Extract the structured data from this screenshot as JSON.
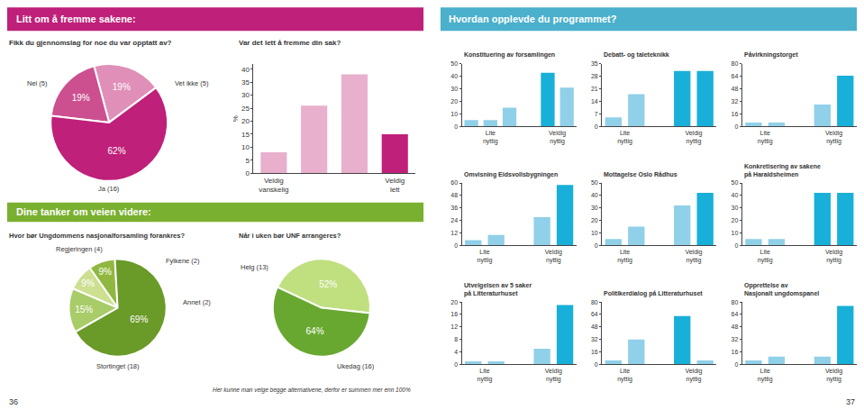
{
  "annotations": [
    {
      "text": "Litt om å fremme sakene:",
      "color": "#bf2079"
    },
    {
      "text": "Hvordan opplevde du programmet?",
      "color": "#4ab0cc"
    },
    {
      "text": "Dine tanker om veien videre:",
      "color": "#7ab030"
    },
    {
      "text": "36"
    },
    {
      "text": "37"
    }
  ],
  "chart_data": [
    {
      "type": "pie",
      "title": "Fikk du gjennomslag for noe du var opptatt av?",
      "values": [
        19,
        19,
        62
      ],
      "value_labels": [
        "19%",
        "19%",
        "62%"
      ],
      "colors": [
        "#e090b8",
        "#cc5090",
        "#bf2079"
      ],
      "data_labels": true,
      "annotations": [
        "Nei (5)",
        "Vet ikke (5)",
        "Ja (16)"
      ]
    },
    {
      "type": "bar",
      "title": "Var det lett å fremme din sak?",
      "categories": [
        "Veldig\nvanskelig",
        null,
        null,
        "Veldig\nlett"
      ],
      "values": [
        8,
        26,
        38,
        15
      ],
      "colors": [
        "#e8b0cc",
        "#e8b0cc",
        "#e8b0cc",
        "#bf2079"
      ],
      "ylabel": "%",
      "ylim": [
        0,
        42
      ],
      "yticks": [
        0,
        5,
        10,
        15,
        20,
        25,
        30,
        35,
        40
      ],
      "grid": false
    },
    {
      "type": "pie",
      "title": "Hvor bør Ungdommens nasjonalforsamling forankres?",
      "values": [
        9,
        9,
        15,
        69
      ],
      "value_labels": [
        "9%",
        "9%",
        "15%",
        "69%"
      ],
      "colors": [
        "#90b840",
        "#cce090",
        "#a8cc68",
        "#6a9a28"
      ],
      "data_labels": true,
      "annotations": [
        "Regjeringen (4)",
        "Fylkene (2)",
        "Annet (2)",
        "Stortinget (18)"
      ]
    },
    {
      "type": "pie",
      "title": "Når i uken bør UNF arrangeres?",
      "values": [
        52,
        64
      ],
      "value_labels": [
        "52%",
        "64%"
      ],
      "colors": [
        "#c0e080",
        "#68a830"
      ],
      "data_labels": true,
      "annotations": [
        "Helg (13)",
        "Ukedag (16)",
        "Her kunne man velge begge alternativene, derfor er summen mer enn 100%"
      ]
    },
    {
      "type": "bar",
      "title": "Konstituering av forsamlingen",
      "categories": [
        "Lite\nnyttig",
        null,
        null,
        null,
        "Veldig\nnyttig",
        null
      ],
      "values": [
        5,
        5,
        15,
        null,
        43,
        31
      ],
      "colors": [
        "#90d0e8",
        "#90d0e8",
        "#90d0e8",
        null,
        "#18b0d8",
        "#90d0e8"
      ],
      "ylim": [
        0,
        50
      ],
      "yticks": [
        0,
        10,
        20,
        30,
        40,
        50
      ],
      "grid": false
    },
    {
      "type": "bar",
      "title": "Debatt- og taleteknikk",
      "categories": [
        "Lite\nnyttig",
        null,
        null,
        "Veldig\nnyttig",
        null
      ],
      "values": [
        5,
        18,
        null,
        31,
        31
      ],
      "colors": [
        "#90d0e8",
        "#90d0e8",
        null,
        "#18b0d8",
        "#18b0d8"
      ],
      "ylim": [
        0,
        35
      ],
      "yticks": [
        0,
        7,
        14,
        21,
        28,
        35
      ],
      "grid": false
    },
    {
      "type": "bar",
      "title": "Påvirkningstorget",
      "categories": [
        "Lite\nnyttig",
        null,
        null,
        "Veldig\nnyttig",
        null
      ],
      "values": [
        5,
        5,
        null,
        28,
        65
      ],
      "colors": [
        "#90d0e8",
        "#90d0e8",
        null,
        "#90d0e8",
        "#18b0d8"
      ],
      "ylim": [
        0,
        80
      ],
      "yticks": [
        0,
        16,
        32,
        48,
        64,
        80
      ],
      "grid": false
    },
    {
      "type": "bar",
      "title": "Omvisning Eidsvollsbygningen",
      "categories": [
        "Lite\nnyttig",
        null,
        null,
        "Veldig\nnyttig",
        null
      ],
      "values": [
        5,
        10,
        null,
        27,
        58
      ],
      "colors": [
        "#90d0e8",
        "#90d0e8",
        null,
        "#90d0e8",
        "#18b0d8"
      ],
      "ylim": [
        0,
        60
      ],
      "yticks": [
        0,
        12,
        24,
        36,
        48,
        60
      ],
      "grid": false
    },
    {
      "type": "bar",
      "title": "Mottagelse Oslo Rådhus",
      "categories": [
        "Lite\nnyttig",
        null,
        null,
        "Veldig\nnyttig",
        null
      ],
      "values": [
        5,
        15,
        null,
        32,
        42
      ],
      "colors": [
        "#90d0e8",
        "#90d0e8",
        null,
        "#90d0e8",
        "#18b0d8"
      ],
      "ylim": [
        0,
        50
      ],
      "yticks": [
        0,
        10,
        20,
        30,
        40,
        50
      ],
      "grid": false
    },
    {
      "type": "bar",
      "title": "Konkretisering av sakene\npå Haraldsheimen",
      "categories": [
        "Lite\nnyttig",
        null,
        null,
        "Veldig\nnyttig",
        null
      ],
      "values": [
        5,
        5,
        null,
        42,
        42
      ],
      "colors": [
        "#90d0e8",
        "#90d0e8",
        null,
        "#18b0d8",
        "#18b0d8"
      ],
      "ylim": [
        0,
        50
      ],
      "yticks": [
        0,
        10,
        20,
        30,
        40,
        50
      ],
      "grid": false
    },
    {
      "type": "bar",
      "title": "Utvelgelsen av 5 saker\npå Litteraturhuset",
      "categories": [
        "Lite\nnyttig",
        null,
        null,
        "Veldig\nnyttig",
        null
      ],
      "values": [
        1,
        1,
        null,
        5,
        19
      ],
      "colors": [
        "#90d0e8",
        "#90d0e8",
        null,
        "#90d0e8",
        "#18b0d8"
      ],
      "ylim": [
        0,
        20
      ],
      "yticks": [
        0,
        4,
        8,
        12,
        16,
        20
      ],
      "grid": false
    },
    {
      "type": "bar",
      "title": "Politikerdialog på Litteraturhuset",
      "categories": [
        "Lite\nnyttig",
        null,
        null,
        "Veldig\nnyttig",
        null
      ],
      "values": [
        5,
        32,
        null,
        62,
        5
      ],
      "colors": [
        "#90d0e8",
        "#90d0e8",
        null,
        "#18b0d8",
        "#90d0e8"
      ],
      "ylim": [
        0,
        80
      ],
      "yticks": [
        0,
        16,
        32,
        48,
        64,
        80
      ],
      "grid": false
    },
    {
      "type": "bar",
      "title": "Opprettelse av\nNasjonalt ungdomspanel",
      "categories": [
        "Lite\nnyttig",
        null,
        null,
        "Veldig\nnyttig",
        null
      ],
      "values": [
        5,
        10,
        null,
        10,
        75
      ],
      "colors": [
        "#90d0e8",
        "#90d0e8",
        null,
        "#90d0e8",
        "#18b0d8"
      ],
      "ylim": [
        0,
        80
      ],
      "yticks": [
        0,
        16,
        32,
        48,
        64,
        80
      ],
      "grid": false
    }
  ]
}
